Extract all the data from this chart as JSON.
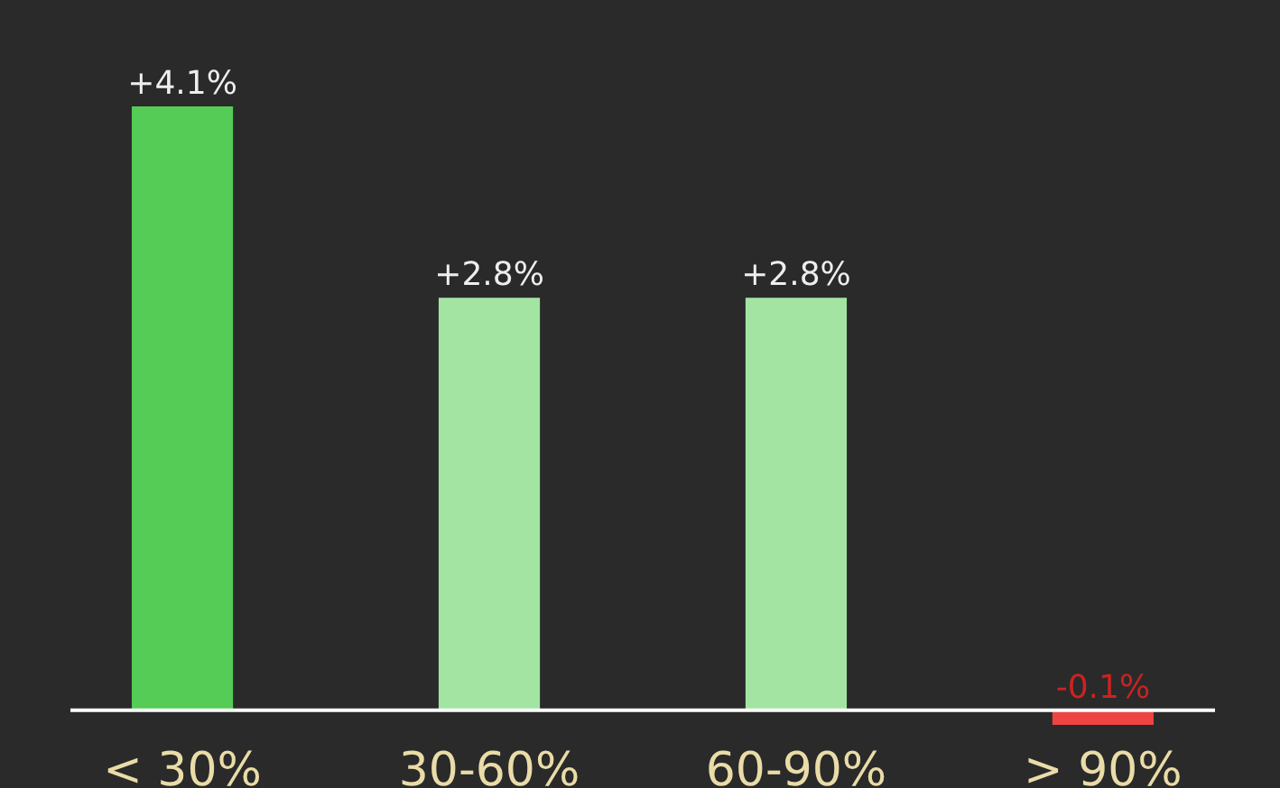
{
  "chart_data": {
    "type": "bar",
    "categories": [
      "< 30%",
      "30-60%",
      "60-90%",
      "> 90%"
    ],
    "values": [
      4.1,
      2.8,
      2.8,
      -0.1
    ],
    "colors": [
      "#55cc55",
      "#a3e4a3",
      "#a3e4a3",
      "#ee4444"
    ],
    "value_labels": [
      "+4.1%",
      "+2.8%",
      "+2.8%",
      "-0.1%"
    ],
    "tick_labels": "x"
  }
}
